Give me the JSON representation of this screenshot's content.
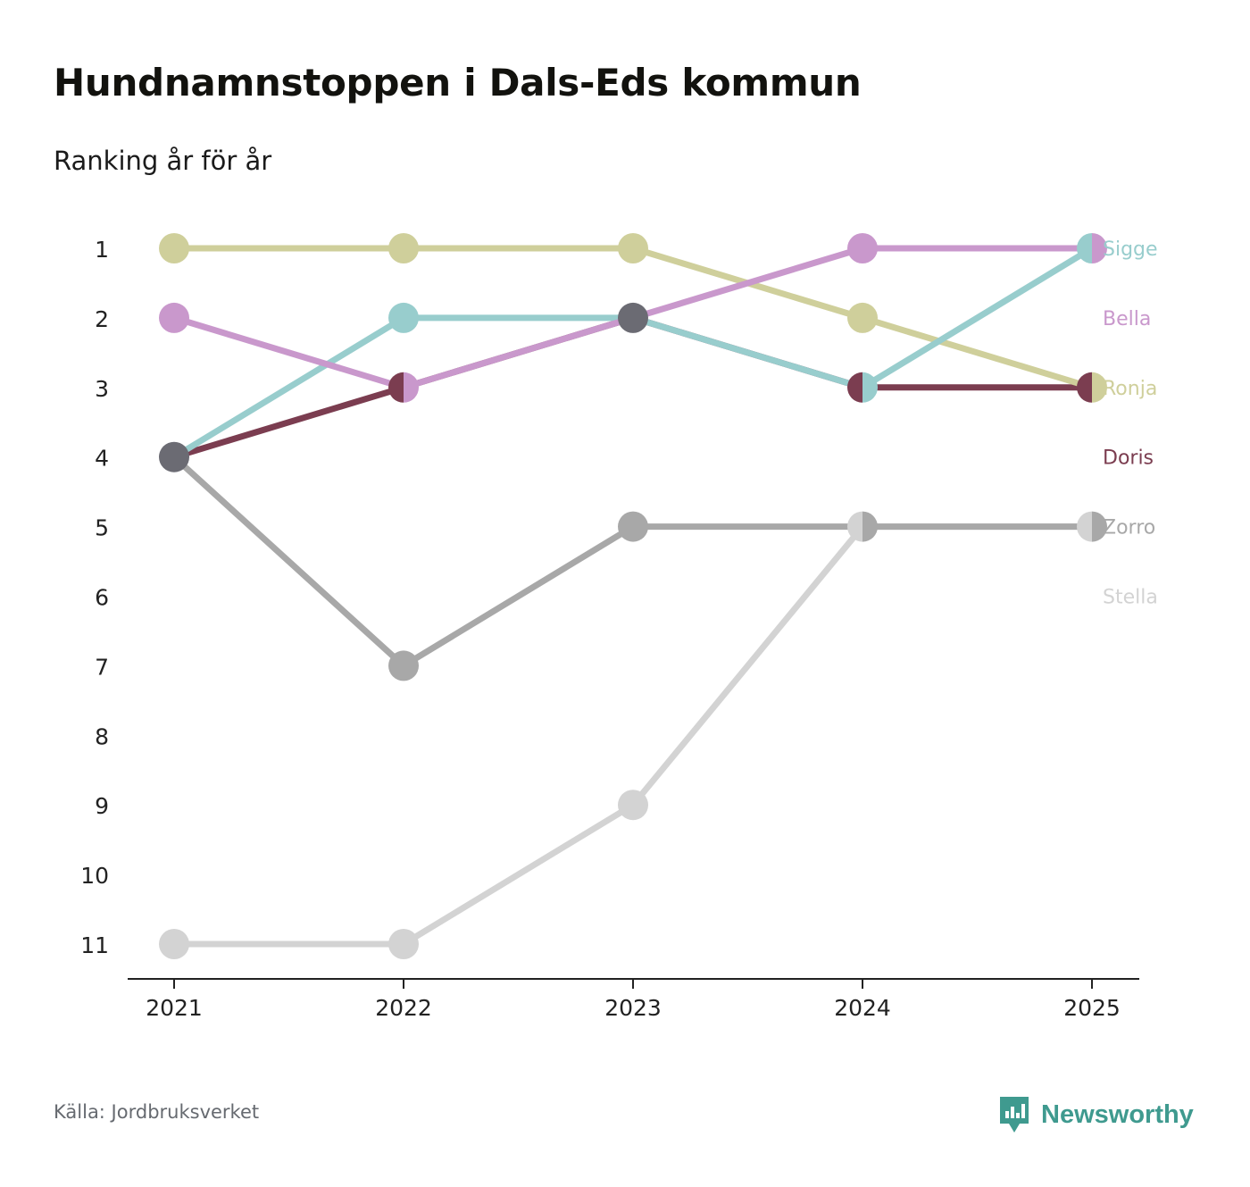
{
  "title": "Hundnamnstoppen i Dals-Eds kommun",
  "subtitle": "Ranking år för år",
  "source": "Källa: Jordbruksverket",
  "brand": {
    "name": "Newsworthy",
    "icon": "newsworthy-logo-icon",
    "color": "#3f9a8f"
  },
  "chart_data": {
    "type": "bump",
    "x": [
      "2021",
      "2022",
      "2023",
      "2024",
      "2025"
    ],
    "y_ticks": [
      "1",
      "2",
      "3",
      "4",
      "5",
      "6",
      "7",
      "8",
      "9",
      "10",
      "11"
    ],
    "ylim": [
      1,
      11
    ],
    "y_inverted": true,
    "series": [
      {
        "name": "Stella",
        "color": "#d3d3d3",
        "ranks": [
          11,
          11,
          9,
          5,
          5
        ]
      },
      {
        "name": "Zorro",
        "color": "#a8a8a8",
        "ranks": [
          4,
          7,
          5,
          5,
          5
        ]
      },
      {
        "name": "Doris",
        "color": "#7b3d50",
        "ranks": [
          4,
          3,
          2,
          3,
          3
        ]
      },
      {
        "name": "Ronja",
        "color": "#cfcf9b",
        "ranks": [
          1,
          1,
          1,
          2,
          3
        ]
      },
      {
        "name": "Sigge",
        "color": "#98cdcd",
        "ranks": [
          4,
          2,
          2,
          3,
          1
        ]
      },
      {
        "name": "Bella",
        "color": "#c998cc",
        "ranks": [
          2,
          3,
          2,
          1,
          1
        ]
      }
    ],
    "shared_point_color": "#6b6b73",
    "legend_order": [
      "Sigge",
      "Bella",
      "Ronja",
      "Doris",
      "Zorro",
      "Stella"
    ],
    "legend_placement": "right"
  }
}
